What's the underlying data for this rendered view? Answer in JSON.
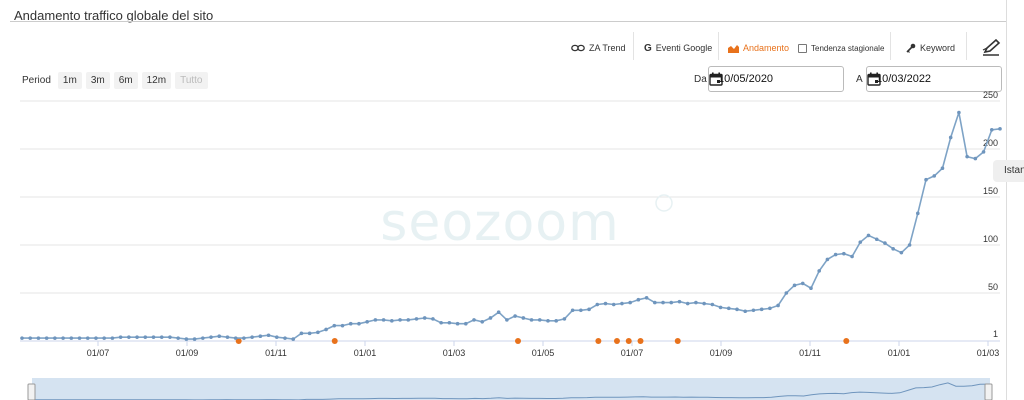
{
  "title": "Andamento traffico globale del sito",
  "toolbar": {
    "za_trend": "ZA Trend",
    "eventi_google": "Eventi Google",
    "andamento": "Andamento",
    "tendenza": "Tendenza stagionale",
    "keyword": "Keyword"
  },
  "period": {
    "label": "Period",
    "buttons": [
      "1m",
      "3m",
      "6m",
      "12m",
      "Tutto"
    ]
  },
  "dates": {
    "from_label": "Da",
    "from_value": "10/05/2020",
    "to_label": "A",
    "to_value": "10/03/2022"
  },
  "tooltip_text": "Istan",
  "watermark": "seozoom",
  "colors": {
    "line": "#7ea3c6",
    "accent": "#e8721c",
    "grid": "#e6e6e6"
  },
  "chart_data": {
    "type": "line",
    "x_tick_labels": [
      "01/07",
      "01/09",
      "01/11",
      "01/01",
      "01/03",
      "01/05",
      "01/07",
      "01/09",
      "01/11",
      "01/01",
      "01/03"
    ],
    "y_tick_labels": [
      "1",
      "50",
      "100",
      "150",
      "200",
      "250"
    ],
    "ylim": [
      0,
      250
    ],
    "grid": true,
    "series": [
      {
        "values": [
          3,
          3,
          3,
          3,
          3,
          3,
          3,
          3,
          3,
          3,
          3,
          3,
          4,
          4,
          4,
          4,
          4,
          4,
          4,
          3,
          2,
          2,
          3,
          4,
          5,
          4,
          3,
          3,
          4,
          5,
          6,
          4,
          3,
          2,
          8,
          8,
          9,
          12,
          16,
          16,
          18,
          18,
          20,
          22,
          22,
          21,
          22,
          22,
          23,
          24,
          23,
          19,
          19,
          18,
          18,
          22,
          20,
          24,
          30,
          22,
          26,
          24,
          22,
          22,
          21,
          21,
          23,
          32,
          32,
          33,
          38,
          39,
          38,
          39,
          40,
          43,
          45,
          40,
          40,
          40,
          41,
          39,
          40,
          39,
          38,
          35,
          34,
          33,
          31,
          32,
          33,
          34,
          37,
          50,
          58,
          60,
          55,
          73,
          85,
          90,
          91,
          88,
          103,
          110,
          106,
          102,
          96,
          92,
          100,
          133,
          168,
          172,
          180,
          212,
          238,
          192,
          190,
          197,
          220,
          221
        ]
      }
    ],
    "event_markers_label": "Eventi Google",
    "event_count": 11
  }
}
